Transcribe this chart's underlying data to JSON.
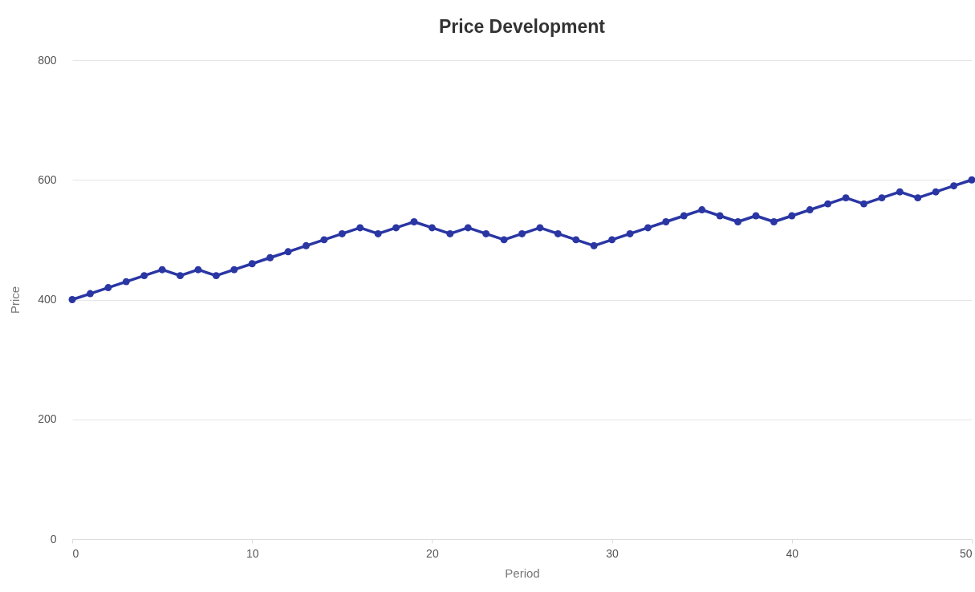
{
  "chart_data": {
    "type": "line",
    "title": "Price Development",
    "xlabel": "Period",
    "ylabel": "Price",
    "x": [
      0,
      1,
      2,
      3,
      4,
      5,
      6,
      7,
      8,
      9,
      10,
      11,
      12,
      13,
      14,
      15,
      16,
      17,
      18,
      19,
      20,
      21,
      22,
      23,
      24,
      25,
      26,
      27,
      28,
      29,
      30,
      31,
      32,
      33,
      34,
      35,
      36,
      37,
      38,
      39,
      40,
      41,
      42,
      43,
      44,
      45,
      46,
      47,
      48,
      49,
      50
    ],
    "series": [
      {
        "color": "#2a36a3",
        "values": [
          400,
          410,
          420,
          430,
          440,
          450,
          440,
          450,
          440,
          450,
          460,
          470,
          480,
          490,
          500,
          510,
          520,
          510,
          520,
          530,
          520,
          510,
          520,
          510,
          500,
          510,
          520,
          510,
          500,
          490,
          500,
          510,
          520,
          530,
          540,
          550,
          540,
          530,
          540,
          530,
          540,
          550,
          560,
          570,
          560,
          570,
          580,
          570,
          580,
          590,
          600
        ]
      }
    ],
    "xlim": [
      0,
      50
    ],
    "xticks": [
      0,
      10,
      20,
      30,
      40,
      50
    ],
    "ylim": [
      0,
      800
    ],
    "yticks": [
      0,
      200,
      400,
      600,
      800
    ],
    "grid": "y",
    "marker": "circle",
    "line_style": "solid",
    "legend": false
  }
}
